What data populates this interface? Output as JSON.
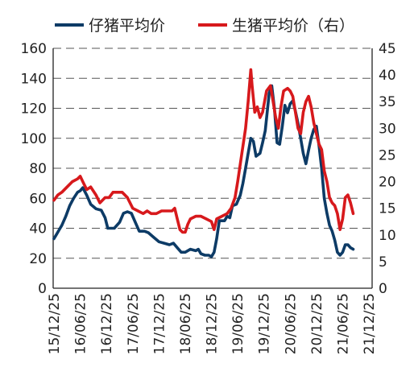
{
  "chart_data": {
    "type": "line",
    "title": "",
    "xlabel": "",
    "ylabel": "",
    "y2label": "",
    "legend_position": "top",
    "grid": "horizontal dashed",
    "x_categories": [
      "15/12/25",
      "16/06/25",
      "16/12/25",
      "17/06/25",
      "17/12/25",
      "18/06/25",
      "18/12/25",
      "19/06/25",
      "19/12/25",
      "20/06/25",
      "20/12/25",
      "21/06/25",
      "21/12/25"
    ],
    "y_left": {
      "min": 0,
      "max": 160,
      "ticks": [
        0,
        20,
        40,
        60,
        80,
        100,
        120,
        140,
        160
      ]
    },
    "y_right": {
      "min": 0,
      "max": 45,
      "ticks": [
        0,
        5,
        10,
        15,
        20,
        25,
        30,
        35,
        40,
        45
      ]
    },
    "series": [
      {
        "name": "仔猪平均价",
        "axis": "left",
        "color": "#0d3b66",
        "points": [
          [
            0.0,
            33
          ],
          [
            0.1,
            36
          ],
          [
            0.2,
            39
          ],
          [
            0.3,
            42
          ],
          [
            0.45,
            48
          ],
          [
            0.6,
            55
          ],
          [
            0.75,
            60
          ],
          [
            0.9,
            64
          ],
          [
            1.0,
            65
          ],
          [
            1.1,
            67
          ],
          [
            1.25,
            62
          ],
          [
            1.4,
            56
          ],
          [
            1.6,
            53
          ],
          [
            1.8,
            52
          ],
          [
            1.95,
            47
          ],
          [
            2.05,
            40
          ],
          [
            2.3,
            40
          ],
          [
            2.5,
            44
          ],
          [
            2.65,
            50
          ],
          [
            2.8,
            51
          ],
          [
            2.95,
            50
          ],
          [
            3.1,
            44
          ],
          [
            3.25,
            38
          ],
          [
            3.45,
            38
          ],
          [
            3.6,
            37
          ],
          [
            3.8,
            34
          ],
          [
            4.0,
            31
          ],
          [
            4.2,
            30
          ],
          [
            4.4,
            29
          ],
          [
            4.55,
            30
          ],
          [
            4.7,
            27
          ],
          [
            4.85,
            24
          ],
          [
            5.0,
            24
          ],
          [
            5.2,
            26
          ],
          [
            5.4,
            25
          ],
          [
            5.5,
            26
          ],
          [
            5.6,
            23
          ],
          [
            5.75,
            22
          ],
          [
            5.9,
            22
          ],
          [
            6.0,
            21
          ],
          [
            6.1,
            24
          ],
          [
            6.2,
            33
          ],
          [
            6.3,
            45
          ],
          [
            6.4,
            45
          ],
          [
            6.5,
            45
          ],
          [
            6.6,
            48
          ],
          [
            6.7,
            47
          ],
          [
            6.8,
            55
          ],
          [
            6.95,
            56
          ],
          [
            7.1,
            62
          ],
          [
            7.2,
            70
          ],
          [
            7.3,
            80
          ],
          [
            7.4,
            90
          ],
          [
            7.5,
            100
          ],
          [
            7.6,
            98
          ],
          [
            7.7,
            88
          ],
          [
            7.85,
            90
          ],
          [
            7.95,
            97
          ],
          [
            8.05,
            105
          ],
          [
            8.2,
            130
          ],
          [
            8.3,
            135
          ],
          [
            8.4,
            120
          ],
          [
            8.5,
            97
          ],
          [
            8.6,
            96
          ],
          [
            8.7,
            108
          ],
          [
            8.8,
            122
          ],
          [
            8.9,
            117
          ],
          [
            9.0,
            123
          ],
          [
            9.1,
            125
          ],
          [
            9.2,
            118
          ],
          [
            9.3,
            110
          ],
          [
            9.4,
            100
          ],
          [
            9.5,
            90
          ],
          [
            9.6,
            83
          ],
          [
            9.7,
            92
          ],
          [
            9.8,
            100
          ],
          [
            9.9,
            106
          ],
          [
            10.0,
            108
          ],
          [
            10.1,
            95
          ],
          [
            10.2,
            80
          ],
          [
            10.3,
            60
          ],
          [
            10.4,
            50
          ],
          [
            10.5,
            42
          ],
          [
            10.6,
            38
          ],
          [
            10.7,
            32
          ],
          [
            10.8,
            24
          ],
          [
            10.9,
            22
          ],
          [
            11.0,
            24
          ],
          [
            11.1,
            29
          ],
          [
            11.2,
            29
          ],
          [
            11.3,
            27
          ],
          [
            11.4,
            26
          ]
        ]
      },
      {
        "name": "生猪平均价（右）",
        "axis": "right",
        "color": "#d7191c",
        "points": [
          [
            0.0,
            16.5
          ],
          [
            0.15,
            17.5
          ],
          [
            0.3,
            18.0
          ],
          [
            0.5,
            19.0
          ],
          [
            0.7,
            20.0
          ],
          [
            0.9,
            20.5
          ],
          [
            1.0,
            21.0
          ],
          [
            1.1,
            20.0
          ],
          [
            1.25,
            18.5
          ],
          [
            1.4,
            19.0
          ],
          [
            1.6,
            17.5
          ],
          [
            1.75,
            16.0
          ],
          [
            1.95,
            17.0
          ],
          [
            2.1,
            17.0
          ],
          [
            2.25,
            18.0
          ],
          [
            2.4,
            18.0
          ],
          [
            2.6,
            18.0
          ],
          [
            2.8,
            17.0
          ],
          [
            3.0,
            15.0
          ],
          [
            3.2,
            14.5
          ],
          [
            3.4,
            14.0
          ],
          [
            3.55,
            14.5
          ],
          [
            3.7,
            14.0
          ],
          [
            3.9,
            14.0
          ],
          [
            4.1,
            14.5
          ],
          [
            4.3,
            14.5
          ],
          [
            4.5,
            14.5
          ],
          [
            4.6,
            15.0
          ],
          [
            4.7,
            13.0
          ],
          [
            4.8,
            11.0
          ],
          [
            4.9,
            10.5
          ],
          [
            5.0,
            10.5
          ],
          [
            5.1,
            12.0
          ],
          [
            5.2,
            13.0
          ],
          [
            5.4,
            13.5
          ],
          [
            5.6,
            13.5
          ],
          [
            5.8,
            13.0
          ],
          [
            6.0,
            12.5
          ],
          [
            6.1,
            11.0
          ],
          [
            6.2,
            13.0
          ],
          [
            6.4,
            13.5
          ],
          [
            6.6,
            14.0
          ],
          [
            6.75,
            15.0
          ],
          [
            6.9,
            17.0
          ],
          [
            7.0,
            20.0
          ],
          [
            7.15,
            25.0
          ],
          [
            7.3,
            30.0
          ],
          [
            7.4,
            35.0
          ],
          [
            7.5,
            41.0
          ],
          [
            7.55,
            38.0
          ],
          [
            7.65,
            33.0
          ],
          [
            7.75,
            34.0
          ],
          [
            7.85,
            32.0
          ],
          [
            7.95,
            33.0
          ],
          [
            8.1,
            37.0
          ],
          [
            8.25,
            38.0
          ],
          [
            8.35,
            35.0
          ],
          [
            8.45,
            32.0
          ],
          [
            8.55,
            30.0
          ],
          [
            8.65,
            34.0
          ],
          [
            8.75,
            37.0
          ],
          [
            8.9,
            37.5
          ],
          [
            9.0,
            37.0
          ],
          [
            9.1,
            36.0
          ],
          [
            9.2,
            33.0
          ],
          [
            9.3,
            30.0
          ],
          [
            9.4,
            29.0
          ],
          [
            9.5,
            33.0
          ],
          [
            9.6,
            35.0
          ],
          [
            9.7,
            36.0
          ],
          [
            9.8,
            34.0
          ],
          [
            9.9,
            31.0
          ],
          [
            10.0,
            29.0
          ],
          [
            10.1,
            27.0
          ],
          [
            10.2,
            26.0
          ],
          [
            10.3,
            22.0
          ],
          [
            10.4,
            20.0
          ],
          [
            10.5,
            17.0
          ],
          [
            10.6,
            16.0
          ],
          [
            10.7,
            15.5
          ],
          [
            10.8,
            14.0
          ],
          [
            10.9,
            11.0
          ],
          [
            11.0,
            13.0
          ],
          [
            11.1,
            17.0
          ],
          [
            11.2,
            17.5
          ],
          [
            11.3,
            16.0
          ],
          [
            11.4,
            14.0
          ]
        ]
      }
    ]
  }
}
